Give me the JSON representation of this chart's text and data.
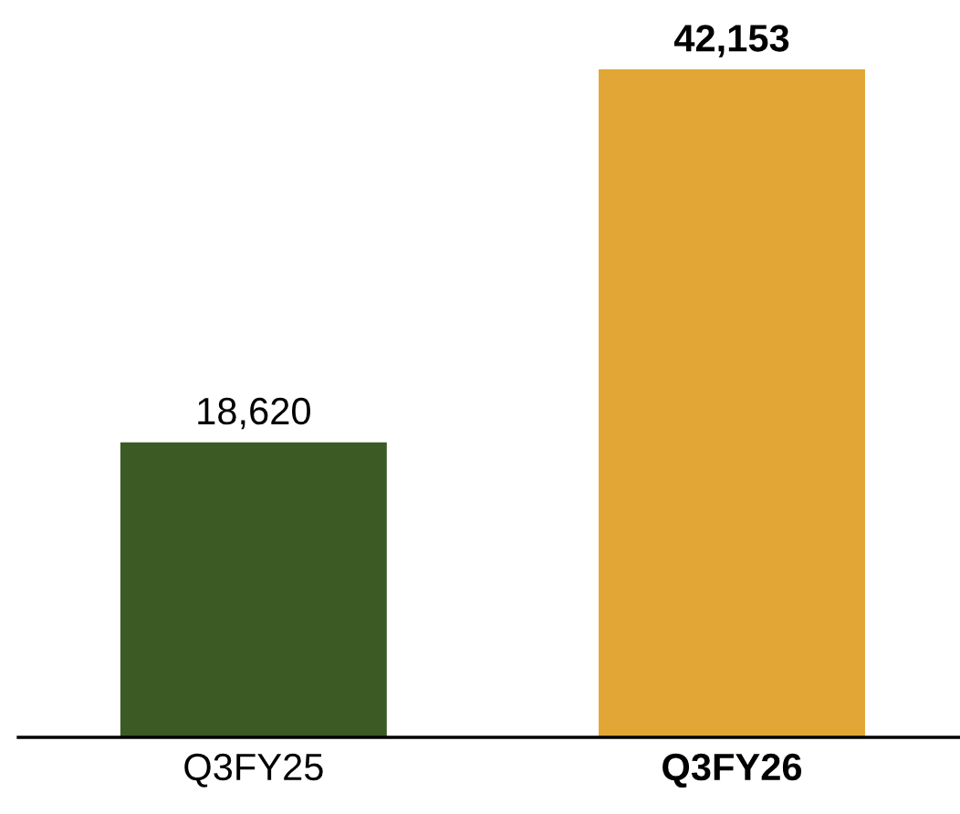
{
  "chart_data": {
    "type": "bar",
    "categories": [
      "Q3FY25",
      "Q3FY26"
    ],
    "values": [
      18620,
      42153
    ],
    "colors": [
      "#3b5a24",
      "#e2a636"
    ],
    "value_labels": [
      "18,620",
      "42,153"
    ],
    "grid": false,
    "legend": false
  }
}
